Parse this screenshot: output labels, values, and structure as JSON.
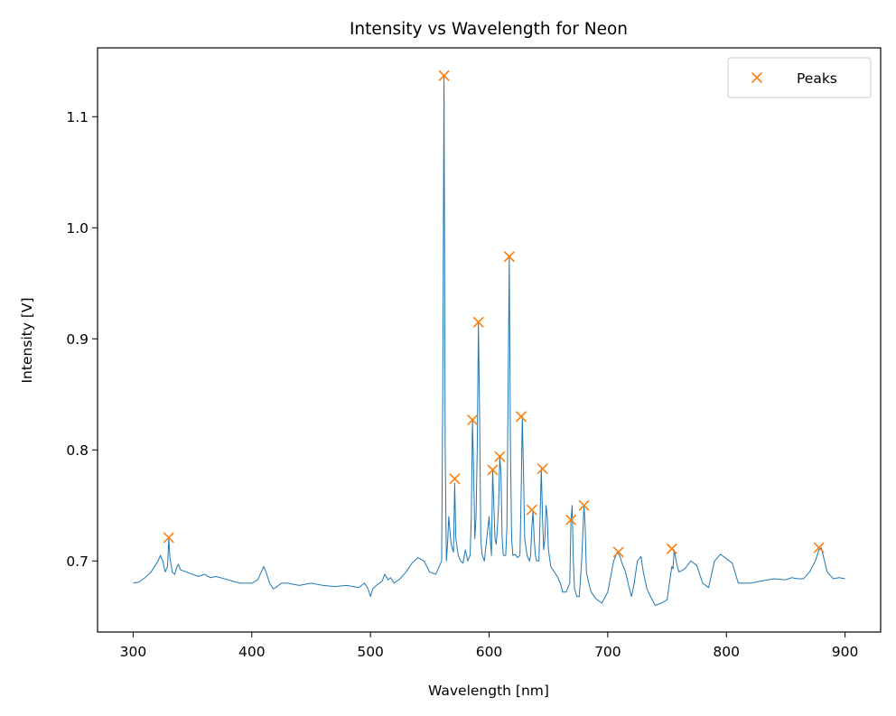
{
  "chart_data": {
    "type": "line",
    "title": "Intensity vs Wavelength for Neon",
    "xlabel": "Wavelength [nm]",
    "ylabel": "Intensity [V]",
    "xlim": [
      270,
      930
    ],
    "ylim": [
      0.636,
      1.162
    ],
    "xticks": [
      300,
      400,
      500,
      600,
      700,
      800,
      900
    ],
    "xtick_labels": [
      "300",
      "400",
      "500",
      "600",
      "700",
      "800",
      "900"
    ],
    "yticks": [
      0.7,
      0.8,
      0.9,
      1.0,
      1.1
    ],
    "ytick_labels": [
      "0.7",
      "0.8",
      "0.9",
      "1.0",
      "1.1"
    ],
    "grid": false,
    "legend": {
      "position": "top-right",
      "entries": [
        {
          "label": "Peaks",
          "marker": "x",
          "color": "#ff7f0e"
        }
      ]
    },
    "series": [
      {
        "style": "line",
        "color": "#1f77b4",
        "x": [
          300,
          305,
          310,
          315,
          318,
          321,
          323,
          325,
          327,
          329,
          330,
          331,
          333,
          335,
          337,
          338,
          340,
          345,
          350,
          355,
          360,
          365,
          370,
          380,
          390,
          400,
          405,
          408,
          410,
          412,
          415,
          418,
          420,
          425,
          430,
          440,
          450,
          460,
          470,
          480,
          490,
          495,
          498,
          500,
          502,
          505,
          510,
          512,
          515,
          517,
          520,
          525,
          530,
          535,
          540,
          545,
          550,
          555,
          558,
          560,
          561,
          562,
          563,
          564,
          565,
          566,
          568,
          570,
          571,
          572,
          574,
          576,
          578,
          580,
          582,
          584,
          585,
          586,
          587,
          588,
          589,
          590,
          591,
          592,
          593,
          594,
          596,
          598,
          600,
          601,
          602,
          603,
          604,
          605,
          606,
          607,
          608,
          609,
          610,
          611,
          612,
          614,
          615,
          616,
          617,
          618,
          619,
          620,
          622,
          624,
          626,
          627,
          628,
          629,
          630,
          632,
          634,
          635,
          636,
          637,
          638,
          639,
          640,
          642,
          643,
          644,
          645,
          646,
          647,
          648,
          649,
          650,
          652,
          655,
          658,
          660,
          662,
          665,
          668,
          669,
          670,
          671,
          672,
          674,
          676,
          678,
          680,
          681,
          682,
          684,
          686,
          690,
          695,
          700,
          705,
          708,
          710,
          712,
          715,
          718,
          720,
          722,
          725,
          728,
          730,
          733,
          736,
          740,
          745,
          750,
          752,
          754,
          755,
          756,
          758,
          760,
          765,
          770,
          775,
          780,
          785,
          790,
          795,
          800,
          805,
          810,
          820,
          830,
          840,
          850,
          855,
          860,
          865,
          870,
          875,
          878,
          880,
          882,
          885,
          890,
          895,
          900
        ],
        "y": [
          0.68,
          0.681,
          0.685,
          0.69,
          0.695,
          0.7,
          0.705,
          0.7,
          0.69,
          0.695,
          0.72,
          0.703,
          0.69,
          0.688,
          0.695,
          0.697,
          0.692,
          0.69,
          0.688,
          0.686,
          0.688,
          0.685,
          0.686,
          0.683,
          0.68,
          0.68,
          0.683,
          0.69,
          0.695,
          0.69,
          0.68,
          0.675,
          0.676,
          0.68,
          0.68,
          0.678,
          0.68,
          0.678,
          0.677,
          0.678,
          0.676,
          0.68,
          0.675,
          0.668,
          0.675,
          0.678,
          0.682,
          0.688,
          0.683,
          0.685,
          0.68,
          0.684,
          0.69,
          0.698,
          0.703,
          0.7,
          0.69,
          0.688,
          0.695,
          0.7,
          0.86,
          1.137,
          0.8,
          0.7,
          0.715,
          0.74,
          0.715,
          0.708,
          0.77,
          0.72,
          0.705,
          0.7,
          0.698,
          0.71,
          0.7,
          0.705,
          0.74,
          0.826,
          0.78,
          0.72,
          0.74,
          0.8,
          0.915,
          0.83,
          0.72,
          0.706,
          0.7,
          0.72,
          0.74,
          0.72,
          0.705,
          0.782,
          0.75,
          0.72,
          0.715,
          0.73,
          0.75,
          0.793,
          0.78,
          0.72,
          0.705,
          0.705,
          0.73,
          0.85,
          0.974,
          0.8,
          0.72,
          0.705,
          0.706,
          0.703,
          0.705,
          0.76,
          0.83,
          0.78,
          0.72,
          0.705,
          0.7,
          0.705,
          0.73,
          0.745,
          0.72,
          0.705,
          0.7,
          0.7,
          0.74,
          0.783,
          0.74,
          0.71,
          0.72,
          0.75,
          0.74,
          0.71,
          0.695,
          0.69,
          0.685,
          0.68,
          0.672,
          0.672,
          0.68,
          0.736,
          0.75,
          0.7,
          0.675,
          0.668,
          0.668,
          0.7,
          0.75,
          0.73,
          0.69,
          0.68,
          0.672,
          0.666,
          0.662,
          0.672,
          0.7,
          0.708,
          0.705,
          0.698,
          0.69,
          0.676,
          0.668,
          0.678,
          0.7,
          0.704,
          0.69,
          0.675,
          0.668,
          0.66,
          0.662,
          0.665,
          0.68,
          0.695,
          0.693,
          0.71,
          0.698,
          0.69,
          0.693,
          0.7,
          0.696,
          0.68,
          0.676,
          0.7,
          0.706,
          0.702,
          0.698,
          0.68,
          0.68,
          0.682,
          0.684,
          0.683,
          0.685,
          0.684,
          0.684,
          0.69,
          0.7,
          0.71,
          0.712,
          0.703,
          0.69,
          0.684,
          0.685,
          0.684
        ]
      },
      {
        "name": "Peaks",
        "style": "markers",
        "marker": "x",
        "color": "#ff7f0e",
        "x": [
          330,
          562,
          571,
          586,
          591,
          603,
          609,
          617,
          627,
          636,
          645,
          669,
          680,
          709,
          754,
          878
        ],
        "y": [
          0.721,
          1.137,
          0.774,
          0.827,
          0.915,
          0.782,
          0.794,
          0.974,
          0.83,
          0.746,
          0.783,
          0.737,
          0.75,
          0.708,
          0.711,
          0.712
        ]
      }
    ]
  }
}
